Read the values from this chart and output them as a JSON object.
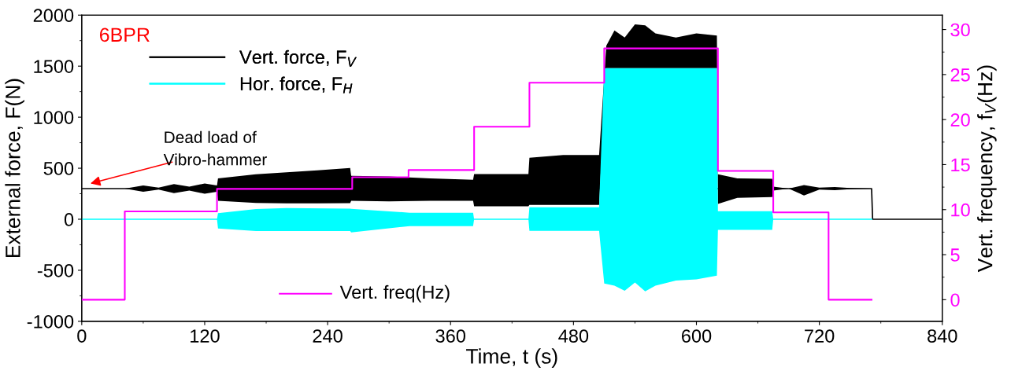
{
  "chart_data": {
    "type": "line",
    "xlabel": "Time, t (s)",
    "ylabel": "External force, F(N)",
    "y2label": "Vert. frequency, f$_{V}$(Hz)",
    "annotations": [
      "6BPR",
      "Dead load of\nVibro-hammer"
    ],
    "xlim": [
      0,
      840
    ],
    "xticks": [
      0,
      120,
      240,
      360,
      480,
      600,
      720,
      840
    ],
    "ylim": [
      -1000,
      2000
    ],
    "yticks": [
      -1000,
      -500,
      0,
      500,
      1000,
      1500,
      2000
    ],
    "y2lim": [
      -2.4,
      31.6
    ],
    "y2ticks": [
      0,
      5,
      10,
      15,
      20,
      25,
      30
    ],
    "grid": false,
    "legend": "left",
    "series": [
      {
        "name": "Vert. force, F$_{V}$",
        "color": "#000000",
        "x": [
          0,
          42,
          60,
          75,
          90,
          105,
          120,
          132,
          133,
          170,
          200,
          230,
          262,
          263,
          300,
          340,
          382,
          383,
          436,
          437,
          470,
          505,
          512,
          520,
          530,
          540,
          550,
          560,
          580,
          600,
          620,
          621,
          640,
          674,
          675,
          690,
          705,
          720,
          735,
          750,
          771,
          772,
          840
        ],
        "values": [
          300,
          300,
          300,
          300,
          300,
          300,
          300,
          300,
          300,
          300,
          300,
          300,
          300,
          300,
          300,
          300,
          300,
          300,
          300,
          300,
          300,
          300,
          null,
          null,
          null,
          null,
          null,
          null,
          null,
          null,
          null,
          300,
          300,
          300,
          300,
          300,
          300,
          300,
          300,
          300,
          300,
          0,
          0
        ],
        "upper": [
          300,
          300,
          330,
          310,
          345,
          320,
          350,
          330,
          400,
          440,
          460,
          480,
          503,
          425,
          420,
          400,
          387,
          443,
          443,
          603,
          630,
          630,
          1700,
          1850,
          1780,
          1910,
          1900,
          1820,
          1780,
          1820,
          1800,
          440,
          400,
          397,
          320,
          300,
          334,
          310,
          315,
          305,
          300,
          0,
          0
        ],
        "lower": [
          300,
          300,
          270,
          290,
          255,
          280,
          250,
          270,
          180,
          160,
          156,
          156,
          158,
          180,
          175,
          180,
          180,
          126,
          126,
          141,
          141,
          141,
          1480,
          1480,
          1480,
          1480,
          1480,
          1480,
          1480,
          1480,
          1480,
          150,
          210,
          218,
          280,
          300,
          233,
          290,
          285,
          295,
          300,
          0,
          0
        ]
      },
      {
        "name": "Hor. force, F$_{H}$",
        "color": "#00ffff",
        "x": [
          0,
          132,
          133,
          170,
          200,
          262,
          263,
          320,
          382,
          383,
          436,
          437,
          470,
          505,
          510,
          520,
          530,
          540,
          550,
          560,
          580,
          600,
          620,
          621,
          640,
          674,
          675,
          771
        ],
        "values": [
          0,
          0,
          0,
          0,
          0,
          0,
          0,
          0,
          0,
          0,
          0,
          0,
          0,
          0,
          0,
          0,
          0,
          0,
          0,
          0,
          0,
          0,
          0,
          0,
          0,
          0,
          0,
          0
        ],
        "upper": [
          0,
          0,
          60,
          100,
          110,
          103,
          102,
          64,
          64,
          0,
          0,
          118,
          118,
          118,
          1480,
          1480,
          1480,
          1480,
          1480,
          1480,
          1480,
          1480,
          1480,
          78,
          78,
          78,
          0,
          0
        ],
        "lower": [
          0,
          0,
          -90,
          -115,
          -115,
          -115,
          -129,
          -67,
          -67,
          0,
          0,
          -113,
          -113,
          -113,
          -630,
          -650,
          -700,
          -620,
          -707,
          -650,
          -600,
          -590,
          -553,
          -105,
          -105,
          -105,
          0,
          0
        ]
      },
      {
        "name": "Vert. freq(Hz)",
        "type": "step",
        "axis": "y2",
        "color": "#ff00ff",
        "x": [
          0,
          42,
          132,
          264,
          319,
          383,
          437,
          510,
          621,
          675,
          729,
          771
        ],
        "values": [
          0,
          9.8,
          12.3,
          13.6,
          14.4,
          19.2,
          24.1,
          27.9,
          14.3,
          9.7,
          0,
          0
        ]
      }
    ]
  }
}
